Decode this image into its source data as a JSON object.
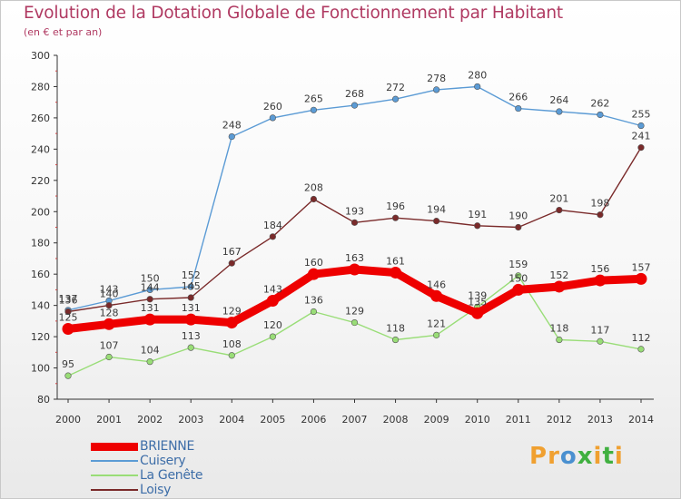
{
  "header": {
    "title": "Evolution de la Dotation Globale de Fonctionnement par Habitant",
    "subtitle": "(en € et par an)"
  },
  "logo": {
    "text": "Proxiti",
    "colors": [
      "#f0a030",
      "#f0a030",
      "#4a90d0",
      "#40b040",
      "#f0a030",
      "#40b040",
      "#f0a030"
    ]
  },
  "chart_data": {
    "type": "line",
    "title": "Evolution de la Dotation Globale de Fonctionnement par Habitant",
    "subtitle": "(en € et par an)",
    "xlabel": "",
    "ylabel": "",
    "ylim": [
      80,
      300
    ],
    "yticks": [
      80,
      100,
      120,
      140,
      160,
      180,
      200,
      220,
      240,
      260,
      280,
      300
    ],
    "x": [
      "2000",
      "2001",
      "2002",
      "2003",
      "2004",
      "2005",
      "2006",
      "2007",
      "2008",
      "2009",
      "2010",
      "2011",
      "2012",
      "2013",
      "2014"
    ],
    "grid": false,
    "legend_position": "bottom-left",
    "series": [
      {
        "name": "BRIENNE",
        "color": "#ee0000",
        "highlight": true,
        "values": [
          125,
          128,
          131,
          131,
          129,
          143,
          160,
          163,
          161,
          146,
          135,
          150,
          152,
          156,
          157
        ]
      },
      {
        "name": "Cuisery",
        "color": "#5b9bd5",
        "highlight": false,
        "values": [
          137,
          143,
          150,
          152,
          248,
          260,
          265,
          268,
          272,
          278,
          280,
          266,
          264,
          262,
          255
        ]
      },
      {
        "name": "La Genête",
        "color": "#99dd77",
        "highlight": false,
        "values": [
          95,
          107,
          104,
          113,
          108,
          120,
          136,
          129,
          118,
          121,
          139,
          159,
          118,
          117,
          112
        ]
      },
      {
        "name": "Loisy",
        "color": "#7a2a2a",
        "highlight": false,
        "values": [
          136,
          140,
          144,
          145,
          167,
          184,
          208,
          193,
          196,
          194,
          191,
          190,
          201,
          198,
          241
        ]
      }
    ]
  }
}
